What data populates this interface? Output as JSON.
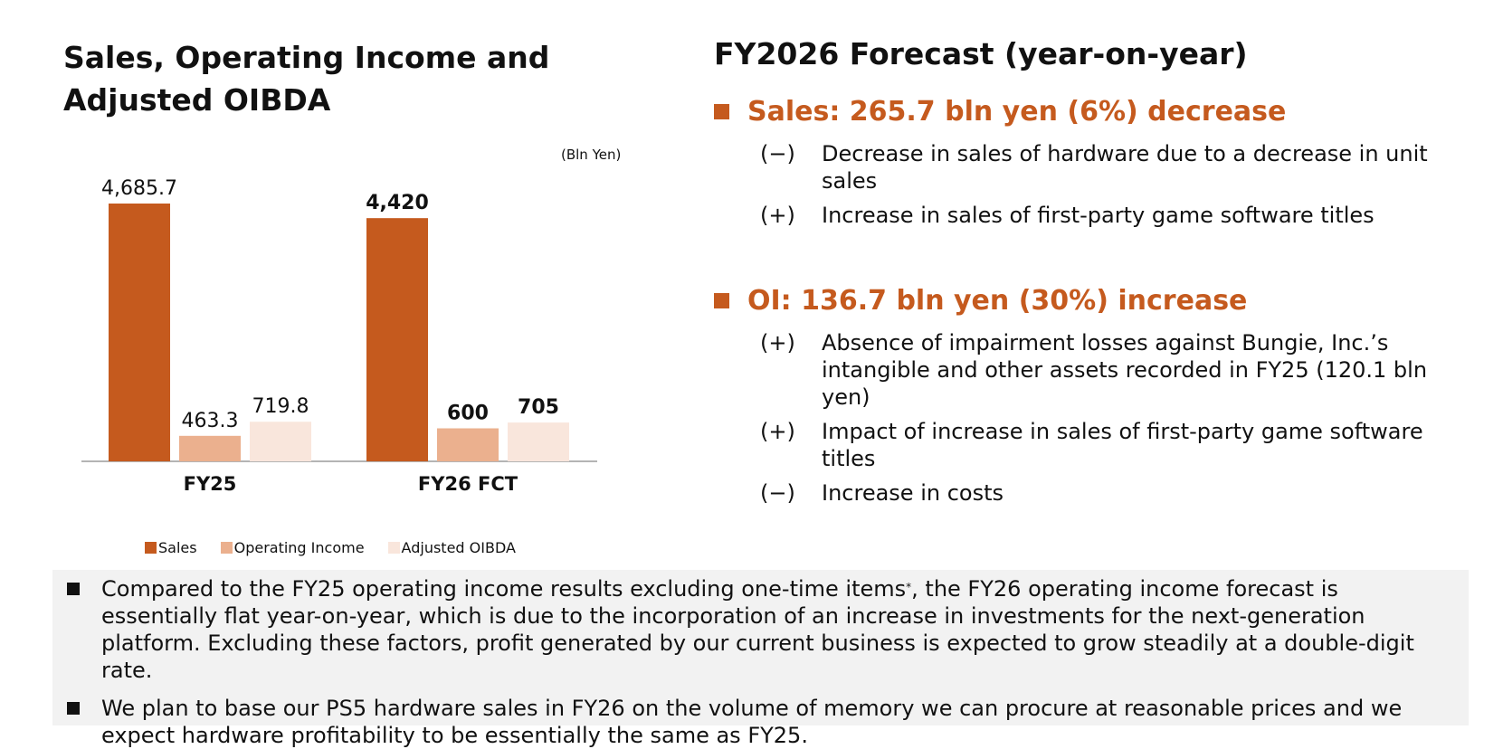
{
  "left": {
    "title": "Sales, Operating Income and Adjusted OIBDA",
    "unit": "(Bln Yen)"
  },
  "chart_data": {
    "type": "bar",
    "categories": [
      "FY25",
      "FY26 FCT"
    ],
    "series": [
      {
        "name": "Sales",
        "values": [
          4685.7,
          4420
        ],
        "labels": [
          "4,685.7",
          "4,420"
        ],
        "color": "#c55a1e"
      },
      {
        "name": "Operating Income",
        "values": [
          463.3,
          600
        ],
        "labels": [
          "463.3",
          "600"
        ],
        "color": "#ebb08e"
      },
      {
        "name": "Adjusted OIBDA",
        "values": [
          719.8,
          705
        ],
        "labels": [
          "719.8",
          "705"
        ],
        "color": "#f9e6dc"
      }
    ],
    "title": "",
    "xlabel": "",
    "ylabel": "",
    "bold_categories": [
      false,
      true
    ],
    "legend_position": "bottom",
    "grid": false
  },
  "right": {
    "title": "FY2026 Forecast (year-on-year)",
    "sections": [
      {
        "heading": "Sales: 265.7 bln yen (6%) decrease",
        "items": [
          {
            "sign": "(−)",
            "text": "Decrease in sales of hardware due to a decrease in unit sales"
          },
          {
            "sign": "(+)",
            "text": "Increase in sales of first-party game software titles"
          }
        ]
      },
      {
        "heading": "OI: 136.7 bln yen (30%) increase",
        "items": [
          {
            "sign": "(+)",
            "text": "Absence of impairment losses against Bungie, Inc.’s intangible and other assets recorded in FY25 (120.1 bln yen)"
          },
          {
            "sign": "(+)",
            "text": "Impact of increase in sales of first-party game software titles"
          },
          {
            "sign": "(−)",
            "text": "Increase in costs"
          }
        ]
      }
    ]
  },
  "bottom": {
    "item1_pre": "Compared to the FY25 operating income results excluding one-time items",
    "item1_sup": "*",
    "item1_post": ", the FY26 operating income forecast is essentially flat year-on-year, which is due to the incorporation of an increase in investments for the next-generation platform. Excluding these factors, profit generated by our current business is expected to grow steadily at a double-digit rate.",
    "item2": "We plan to base our PS5 hardware sales in FY26 on the volume of memory we can procure at reasonable prices and we expect hardware profitability to be essentially the same as FY25."
  }
}
